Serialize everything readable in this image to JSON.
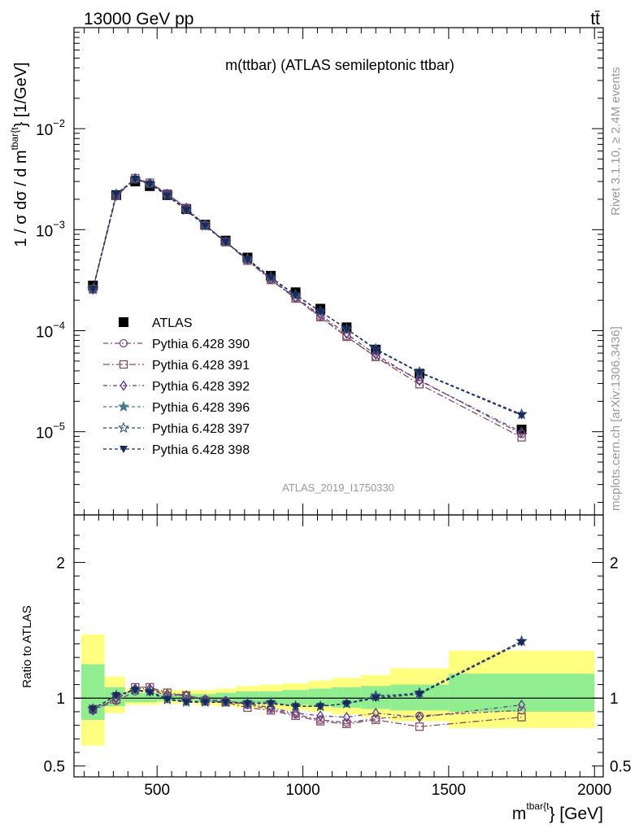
{
  "header": {
    "left": "13000 GeV pp",
    "right": "tt̄"
  },
  "side_labels": {
    "rivet": "Rivet 3.1.10, ≥ 2.4M events",
    "mcplots": "mcplots.cern.ch [arXiv:1306.3436]"
  },
  "chart_data": [
    {
      "type": "line",
      "title": "m(ttbar) (ATLAS semileptonic ttbar)",
      "analysis_tag": "ATLAS_2019_I1750330",
      "ylabel_main": "1 / σ dσ / d m",
      "ylabel_super": "tbar{t",
      "ylabel_tail": "} [1/GeV]",
      "xlabel_main": "m",
      "xlabel_super": "tbar{t",
      "xlabel_tail": "} [GeV]",
      "yscale": "log",
      "ylim": [
        1.5e-06,
        0.1
      ],
      "xlim": [
        215,
        2030
      ],
      "x_ticks": [
        "500",
        "1000",
        "1500",
        "2000"
      ],
      "y_ticks": [
        {
          "base": "10",
          "exp": "−5"
        },
        {
          "base": "10",
          "exp": "−4"
        },
        {
          "base": "10",
          "exp": "−3"
        },
        {
          "base": "10",
          "exp": "−2"
        }
      ],
      "x": [
        280,
        360,
        425,
        475,
        535,
        600,
        665,
        735,
        810,
        890,
        975,
        1060,
        1150,
        1250,
        1400,
        1750
      ],
      "series": [
        {
          "name": "ATLAS",
          "color": "#000000",
          "marker": "square-filled",
          "values": [
            0.00028,
            0.0022,
            0.003,
            0.0027,
            0.0022,
            0.0016,
            0.00112,
            0.00078,
            0.00053,
            0.00035,
            0.00024,
            0.000165,
            0.000108,
            6.5e-05,
            3.75e-05,
            1.05e-05
          ]
        },
        {
          "name": "Pythia 6.428 390",
          "color": "#7a4a7a",
          "marker": "circle-open",
          "dash": "6,3,2,3",
          "values": [
            0.000255,
            0.00215,
            0.00315,
            0.00285,
            0.00225,
            0.00163,
            0.00111,
            0.000762,
            0.000503,
            0.000322,
            0.000211,
            0.000138,
            8.8e-05,
            5.5e-05,
            3.25e-05,
            9.5e-06
          ]
        },
        {
          "name": "Pythia 6.428 391",
          "color": "#8a4a5a",
          "marker": "square-open",
          "dash": "8,3,2,3",
          "values": [
            0.000258,
            0.00217,
            0.00324,
            0.00292,
            0.00228,
            0.00164,
            0.0011,
            0.000755,
            0.000493,
            0.000318,
            0.000208,
            0.000136,
            8.7e-05,
            5.5e-05,
            2.95e-05,
            8.8e-06
          ]
        },
        {
          "name": "Pythia 6.428 392",
          "color": "#5a3a8a",
          "marker": "diamond-open",
          "dash": "5,3,1,3",
          "values": [
            0.000256,
            0.00219,
            0.00321,
            0.00289,
            0.00226,
            0.00164,
            0.00111,
            0.000764,
            0.000508,
            0.000326,
            0.000214,
            0.000143,
            9.3e-05,
            5.8e-05,
            3.2e-05,
            9.9e-06
          ]
        },
        {
          "name": "Pythia 6.428 396",
          "color": "#4a7a8a",
          "marker": "star-filled",
          "dash": "4,3",
          "values": [
            0.000258,
            0.00224,
            0.00318,
            0.00283,
            0.0022,
            0.00156,
            0.0011,
            0.000755,
            0.000514,
            0.000338,
            0.000226,
            0.000155,
            0.000104,
            6.6e-05,
            3.85e-05,
            1.48e-05
          ]
        },
        {
          "name": "Pythia 6.428 397",
          "color": "#2a4a7a",
          "marker": "star-open",
          "dash": "4,3",
          "values": [
            0.000258,
            0.00225,
            0.00318,
            0.00283,
            0.00219,
            0.00157,
            0.00109,
            0.000757,
            0.00051,
            0.000335,
            0.000225,
            0.000155,
            0.000104,
            6.6e-05,
            3.9e-05,
            1.49e-05
          ]
        },
        {
          "name": "Pythia 6.428 398",
          "color": "#1a2a5a",
          "marker": "triangle-down-filled",
          "dash": "4,3",
          "values": [
            0.000258,
            0.00225,
            0.00318,
            0.00282,
            0.00217,
            0.00156,
            0.00109,
            0.000755,
            0.00051,
            0.000335,
            0.000225,
            0.000155,
            0.000104,
            6.5e-05,
            3.86e-05,
            1.45e-05
          ]
        }
      ],
      "legend_position": "middle-left"
    },
    {
      "type": "line",
      "ylabel": "Ratio to ATLAS",
      "ylim": [
        0.42,
        2.35
      ],
      "xlim": [
        215,
        2030
      ],
      "y_ticks": [
        "0.5",
        "1",
        "2"
      ],
      "reference_line": 1,
      "bins": [
        [
          240,
          320
        ],
        [
          320,
          390
        ],
        [
          390,
          450
        ],
        [
          450,
          500
        ],
        [
          500,
          570
        ],
        [
          570,
          630
        ],
        [
          630,
          700
        ],
        [
          700,
          770
        ],
        [
          770,
          850
        ],
        [
          850,
          930
        ],
        [
          930,
          1020
        ],
        [
          1020,
          1100
        ],
        [
          1100,
          1200
        ],
        [
          1200,
          1300
        ],
        [
          1300,
          1500
        ],
        [
          1500,
          2000
        ]
      ],
      "band_inner": [
        [
          0.84,
          1.25
        ],
        [
          0.94,
          1.08
        ],
        [
          0.97,
          1.04
        ],
        [
          0.97,
          1.04
        ],
        [
          0.98,
          1.03
        ],
        [
          0.98,
          1.03
        ],
        [
          0.97,
          1.03
        ],
        [
          0.97,
          1.04
        ],
        [
          0.96,
          1.05
        ],
        [
          0.96,
          1.05
        ],
        [
          0.95,
          1.06
        ],
        [
          0.94,
          1.07
        ],
        [
          0.93,
          1.08
        ],
        [
          0.92,
          1.09
        ],
        [
          0.91,
          1.1
        ],
        [
          0.9,
          1.18
        ]
      ],
      "band_outer": [
        [
          0.65,
          1.47
        ],
        [
          0.89,
          1.16
        ],
        [
          0.95,
          1.07
        ],
        [
          0.95,
          1.07
        ],
        [
          0.96,
          1.06
        ],
        [
          0.96,
          1.06
        ],
        [
          0.95,
          1.06
        ],
        [
          0.94,
          1.07
        ],
        [
          0.93,
          1.09
        ],
        [
          0.92,
          1.1
        ],
        [
          0.91,
          1.11
        ],
        [
          0.9,
          1.13
        ],
        [
          0.88,
          1.15
        ],
        [
          0.86,
          1.17
        ],
        [
          0.83,
          1.22
        ],
        [
          0.78,
          1.35
        ]
      ],
      "x": [
        280,
        360,
        425,
        475,
        535,
        600,
        665,
        735,
        810,
        890,
        975,
        1060,
        1150,
        1250,
        1400,
        1750
      ],
      "series": [
        {
          "name": "Pythia 6.428 390",
          "values": [
            0.91,
            0.98,
            1.05,
            1.06,
            1.02,
            1.02,
            0.99,
            0.98,
            0.95,
            0.92,
            0.88,
            0.84,
            0.82,
            0.85,
            0.87,
            0.91
          ]
        },
        {
          "name": "Pythia 6.428 391",
          "values": [
            0.92,
            0.99,
            1.08,
            1.08,
            1.04,
            1.02,
            0.98,
            0.97,
            0.93,
            0.91,
            0.87,
            0.83,
            0.81,
            0.84,
            0.79,
            0.86
          ]
        },
        {
          "name": "Pythia 6.428 392",
          "values": [
            0.91,
            1.0,
            1.07,
            1.07,
            1.03,
            1.02,
            0.99,
            0.98,
            0.96,
            0.93,
            0.89,
            0.87,
            0.86,
            0.89,
            0.86,
            0.95
          ]
        },
        {
          "name": "Pythia 6.428 396",
          "values": [
            0.92,
            1.02,
            1.06,
            1.05,
            1.0,
            0.97,
            0.98,
            0.97,
            0.97,
            0.97,
            0.94,
            0.94,
            0.96,
            1.02,
            1.03,
            1.42
          ]
        },
        {
          "name": "Pythia 6.428 397",
          "values": [
            0.92,
            1.02,
            1.06,
            1.05,
            0.99,
            0.98,
            0.97,
            0.97,
            0.96,
            0.96,
            0.94,
            0.94,
            0.96,
            1.01,
            1.04,
            1.42
          ]
        },
        {
          "name": "Pythia 6.428 398",
          "values": [
            0.92,
            1.02,
            1.06,
            1.04,
            0.99,
            0.97,
            0.97,
            0.97,
            0.96,
            0.96,
            0.94,
            0.94,
            0.96,
            1.0,
            1.03,
            1.41
          ]
        }
      ]
    }
  ],
  "colors": {
    "band_inner": "#90ee90",
    "band_outer": "#ffff80"
  }
}
